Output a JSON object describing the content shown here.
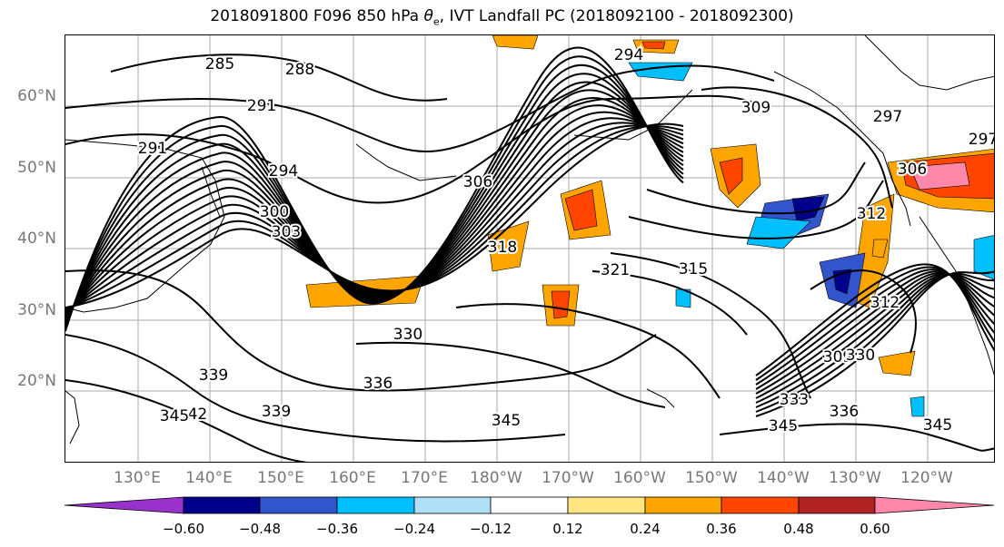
{
  "title_prefix": "2018091800 F096 850 hPa ",
  "title_theta": "θ",
  "title_sub": "e",
  "title_suffix": ", IVT Landfall PC (2018092100 - 2018092300)",
  "lat_labels": [
    "60°N",
    "50°N",
    "40°N",
    "30°N",
    "20°N"
  ],
  "lon_labels": [
    "130°E",
    "140°E",
    "150°E",
    "160°E",
    "170°E",
    "180°W",
    "170°W",
    "160°W",
    "150°W",
    "140°W",
    "130°W",
    "120°W"
  ],
  "colorbar": {
    "ticks": [
      "−0.60",
      "−0.48",
      "−0.36",
      "−0.24",
      "−0.12",
      "0.12",
      "0.24",
      "0.36",
      "0.48",
      "0.60"
    ],
    "colors": [
      "#9932cc",
      "#00008b",
      "#3355cc",
      "#00bfff",
      "#b0e0f8",
      "#ffffff",
      "#ffe680",
      "#ffa500",
      "#ff4500",
      "#b22222",
      "#ff88aa"
    ]
  },
  "contour_labels": [
    "285",
    "288",
    "291",
    "291",
    "294",
    "294",
    "297",
    "297",
    "300",
    "303",
    "306",
    "306",
    "309",
    "309",
    "312",
    "312",
    "315",
    "318",
    "321",
    "330",
    "330",
    "333",
    "336",
    "336",
    "339",
    "339",
    "342",
    "345",
    "345",
    "345",
    "345"
  ],
  "shading_colors": {
    "orange": "#ffa500",
    "red": "#ff4500",
    "yellow": "#ffe680",
    "darkred": "#b22222",
    "pink": "#ff88aa",
    "blue": "#3355cc",
    "cyan": "#00bfff",
    "navy": "#00008b",
    "lightblue": "#b0e0f8"
  }
}
